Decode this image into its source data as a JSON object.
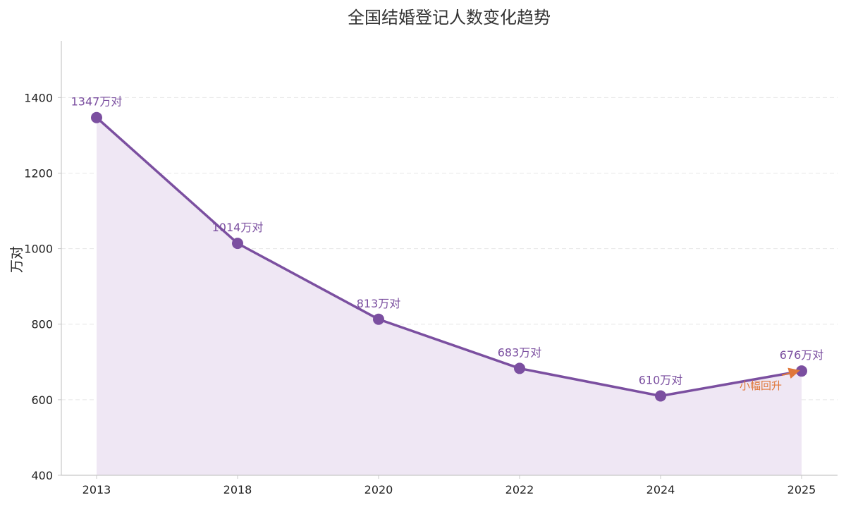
{
  "chart_data": {
    "type": "line",
    "title": "全国结婚登记人数变化趋势",
    "xlabel": "",
    "ylabel": "万对",
    "categories": [
      "2013",
      "2018",
      "2020",
      "2022",
      "2024",
      "2025"
    ],
    "values": [
      1347,
      1014,
      813,
      683,
      610,
      676
    ],
    "data_labels": [
      "1347万对",
      "1014万对",
      "813万对",
      "683万对",
      "610万对",
      "676万对"
    ],
    "ylim": [
      400,
      1550
    ],
    "yticks": [
      400,
      600,
      800,
      1000,
      1200,
      1400
    ],
    "grid": "horizontal dashed",
    "area_fill": true,
    "annotations": [
      {
        "text": "小幅回升",
        "target": "2025",
        "arrow": true
      }
    ]
  },
  "colors": {
    "line": "#7b4fa0",
    "area": "#efe7f4",
    "marker": "#7b4fa0",
    "label": "#7b4fa0",
    "annotation": "#e0773a",
    "grid": "#e6e6e6",
    "axis": "#c8c8c8"
  }
}
